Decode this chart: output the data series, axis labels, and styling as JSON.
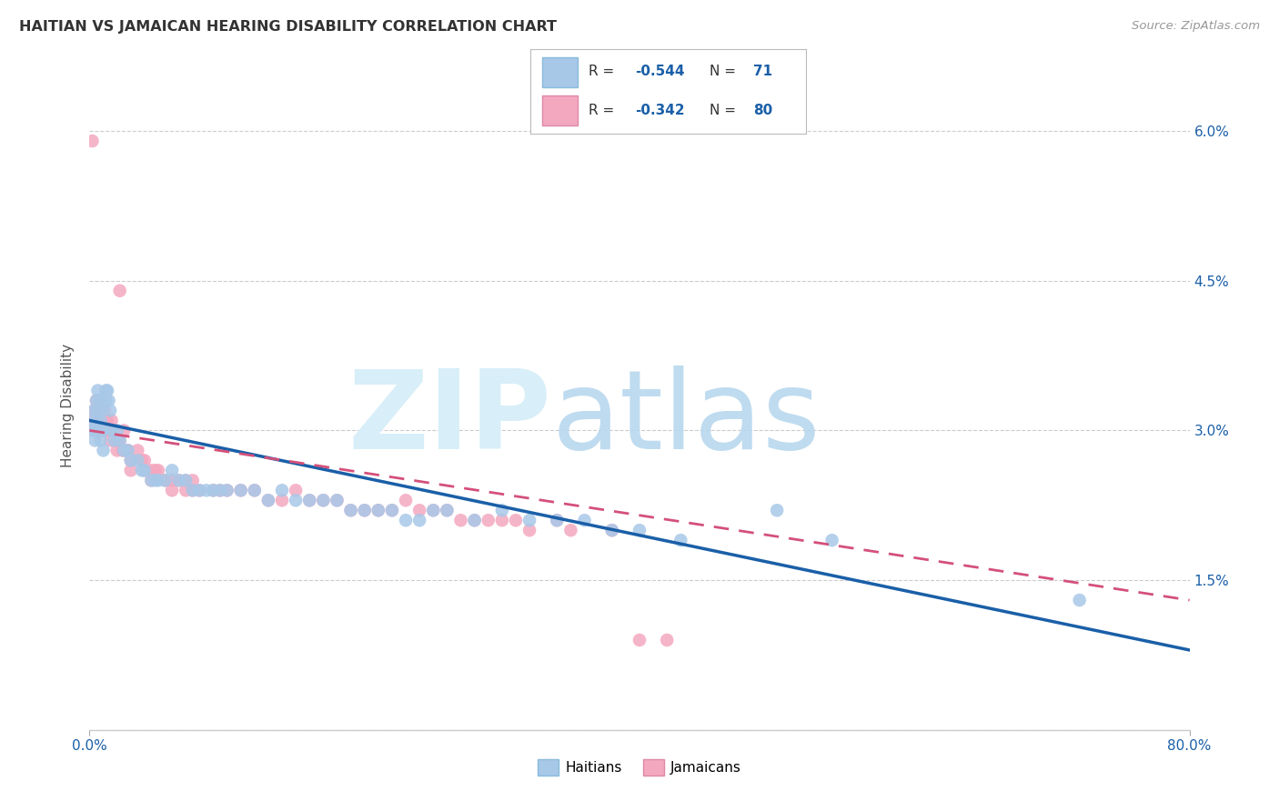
{
  "title": "HAITIAN VS JAMAICAN HEARING DISABILITY CORRELATION CHART",
  "source": "Source: ZipAtlas.com",
  "ylabel": "Hearing Disability",
  "xlim": [
    0.0,
    0.8
  ],
  "ylim": [
    0.0,
    0.065
  ],
  "yticks": [
    0.0,
    0.015,
    0.03,
    0.045,
    0.06
  ],
  "yticklabels": [
    "",
    "1.5%",
    "3.0%",
    "4.5%",
    "6.0%"
  ],
  "xtick_positions": [
    0.0,
    0.8
  ],
  "xticklabels": [
    "0.0%",
    "80.0%"
  ],
  "haitian_color": "#a8c8e8",
  "jamaican_color": "#f4a8c0",
  "haitian_line_color": "#1a5fa8",
  "jamaican_line_color": "#d4507a",
  "jamaican_line_dash": true,
  "grid_color": "#cccccc",
  "legend_R_color": "#1a5fa8",
  "legend_N_color": "#1a5fa8",
  "haitian_scatter": [
    [
      0.002,
      0.03
    ],
    [
      0.003,
      0.032
    ],
    [
      0.003,
      0.03
    ],
    [
      0.004,
      0.031
    ],
    [
      0.004,
      0.029
    ],
    [
      0.005,
      0.033
    ],
    [
      0.005,
      0.031
    ],
    [
      0.006,
      0.034
    ],
    [
      0.006,
      0.032
    ],
    [
      0.007,
      0.033
    ],
    [
      0.007,
      0.03
    ],
    [
      0.008,
      0.031
    ],
    [
      0.008,
      0.029
    ],
    [
      0.009,
      0.032
    ],
    [
      0.01,
      0.03
    ],
    [
      0.01,
      0.028
    ],
    [
      0.012,
      0.034
    ],
    [
      0.012,
      0.033
    ],
    [
      0.013,
      0.034
    ],
    [
      0.014,
      0.033
    ],
    [
      0.015,
      0.032
    ],
    [
      0.016,
      0.03
    ],
    [
      0.018,
      0.029
    ],
    [
      0.02,
      0.03
    ],
    [
      0.022,
      0.029
    ],
    [
      0.025,
      0.028
    ],
    [
      0.028,
      0.028
    ],
    [
      0.03,
      0.027
    ],
    [
      0.035,
      0.027
    ],
    [
      0.038,
      0.026
    ],
    [
      0.04,
      0.026
    ],
    [
      0.045,
      0.025
    ],
    [
      0.048,
      0.025
    ],
    [
      0.05,
      0.025
    ],
    [
      0.055,
      0.025
    ],
    [
      0.06,
      0.026
    ],
    [
      0.065,
      0.025
    ],
    [
      0.07,
      0.025
    ],
    [
      0.075,
      0.024
    ],
    [
      0.08,
      0.024
    ],
    [
      0.085,
      0.024
    ],
    [
      0.09,
      0.024
    ],
    [
      0.095,
      0.024
    ],
    [
      0.1,
      0.024
    ],
    [
      0.11,
      0.024
    ],
    [
      0.12,
      0.024
    ],
    [
      0.13,
      0.023
    ],
    [
      0.14,
      0.024
    ],
    [
      0.15,
      0.023
    ],
    [
      0.16,
      0.023
    ],
    [
      0.17,
      0.023
    ],
    [
      0.18,
      0.023
    ],
    [
      0.19,
      0.022
    ],
    [
      0.2,
      0.022
    ],
    [
      0.21,
      0.022
    ],
    [
      0.22,
      0.022
    ],
    [
      0.23,
      0.021
    ],
    [
      0.24,
      0.021
    ],
    [
      0.25,
      0.022
    ],
    [
      0.26,
      0.022
    ],
    [
      0.28,
      0.021
    ],
    [
      0.3,
      0.022
    ],
    [
      0.32,
      0.021
    ],
    [
      0.34,
      0.021
    ],
    [
      0.36,
      0.021
    ],
    [
      0.38,
      0.02
    ],
    [
      0.4,
      0.02
    ],
    [
      0.43,
      0.019
    ],
    [
      0.5,
      0.022
    ],
    [
      0.54,
      0.019
    ],
    [
      0.72,
      0.013
    ]
  ],
  "jamaican_scatter": [
    [
      0.002,
      0.059
    ],
    [
      0.003,
      0.031
    ],
    [
      0.004,
      0.032
    ],
    [
      0.004,
      0.03
    ],
    [
      0.005,
      0.033
    ],
    [
      0.005,
      0.031
    ],
    [
      0.006,
      0.031
    ],
    [
      0.006,
      0.03
    ],
    [
      0.007,
      0.032
    ],
    [
      0.008,
      0.032
    ],
    [
      0.008,
      0.03
    ],
    [
      0.009,
      0.031
    ],
    [
      0.01,
      0.03
    ],
    [
      0.011,
      0.032
    ],
    [
      0.012,
      0.031
    ],
    [
      0.012,
      0.03
    ],
    [
      0.013,
      0.031
    ],
    [
      0.014,
      0.03
    ],
    [
      0.015,
      0.03
    ],
    [
      0.015,
      0.029
    ],
    [
      0.016,
      0.031
    ],
    [
      0.018,
      0.03
    ],
    [
      0.02,
      0.029
    ],
    [
      0.02,
      0.028
    ],
    [
      0.022,
      0.029
    ],
    [
      0.022,
      0.044
    ],
    [
      0.024,
      0.028
    ],
    [
      0.025,
      0.03
    ],
    [
      0.026,
      0.028
    ],
    [
      0.028,
      0.028
    ],
    [
      0.03,
      0.027
    ],
    [
      0.03,
      0.026
    ],
    [
      0.035,
      0.028
    ],
    [
      0.038,
      0.027
    ],
    [
      0.04,
      0.027
    ],
    [
      0.04,
      0.026
    ],
    [
      0.045,
      0.026
    ],
    [
      0.045,
      0.025
    ],
    [
      0.048,
      0.026
    ],
    [
      0.05,
      0.026
    ],
    [
      0.055,
      0.025
    ],
    [
      0.06,
      0.025
    ],
    [
      0.06,
      0.024
    ],
    [
      0.065,
      0.025
    ],
    [
      0.07,
      0.025
    ],
    [
      0.07,
      0.024
    ],
    [
      0.075,
      0.025
    ],
    [
      0.075,
      0.024
    ],
    [
      0.08,
      0.024
    ],
    [
      0.09,
      0.024
    ],
    [
      0.095,
      0.024
    ],
    [
      0.1,
      0.024
    ],
    [
      0.11,
      0.024
    ],
    [
      0.12,
      0.024
    ],
    [
      0.13,
      0.023
    ],
    [
      0.14,
      0.023
    ],
    [
      0.15,
      0.024
    ],
    [
      0.16,
      0.023
    ],
    [
      0.17,
      0.023
    ],
    [
      0.18,
      0.023
    ],
    [
      0.19,
      0.022
    ],
    [
      0.2,
      0.022
    ],
    [
      0.21,
      0.022
    ],
    [
      0.22,
      0.022
    ],
    [
      0.23,
      0.023
    ],
    [
      0.24,
      0.022
    ],
    [
      0.25,
      0.022
    ],
    [
      0.26,
      0.022
    ],
    [
      0.27,
      0.021
    ],
    [
      0.28,
      0.021
    ],
    [
      0.29,
      0.021
    ],
    [
      0.3,
      0.021
    ],
    [
      0.31,
      0.021
    ],
    [
      0.32,
      0.02
    ],
    [
      0.34,
      0.021
    ],
    [
      0.35,
      0.02
    ],
    [
      0.38,
      0.02
    ],
    [
      0.4,
      0.009
    ],
    [
      0.42,
      0.009
    ]
  ]
}
